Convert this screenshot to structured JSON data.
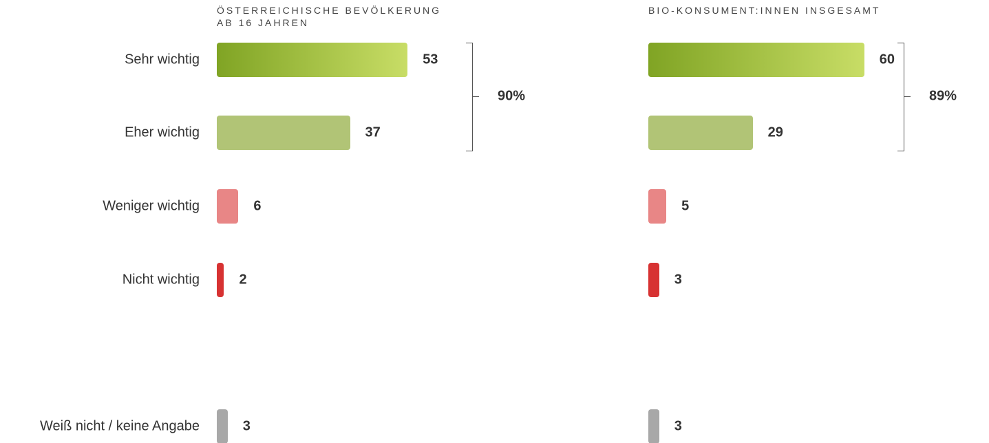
{
  "chart_data": {
    "type": "bar",
    "orientation": "horizontal",
    "categories": [
      "Sehr wichtig",
      "Eher wichtig",
      "Weniger wichtig",
      "Nicht wichtig",
      "Weiß nicht / keine Angabe"
    ],
    "colors": [
      "#80a424",
      "#b1c476",
      "#e88686",
      "#d73232",
      "#a8a8a8"
    ],
    "series": [
      {
        "name": "ÖSTERREICHISCHE BEVÖLKERUNG AB 16 JAHREN",
        "values": [
          53,
          37,
          6,
          2,
          3
        ],
        "summary": {
          "value": 90,
          "label": "90%"
        }
      },
      {
        "name": "BIO-KONSUMENT:INNEN INSGESAMT",
        "values": [
          60,
          29,
          5,
          3,
          3
        ],
        "summary": {
          "value": 89,
          "label": "89%"
        }
      }
    ]
  }
}
